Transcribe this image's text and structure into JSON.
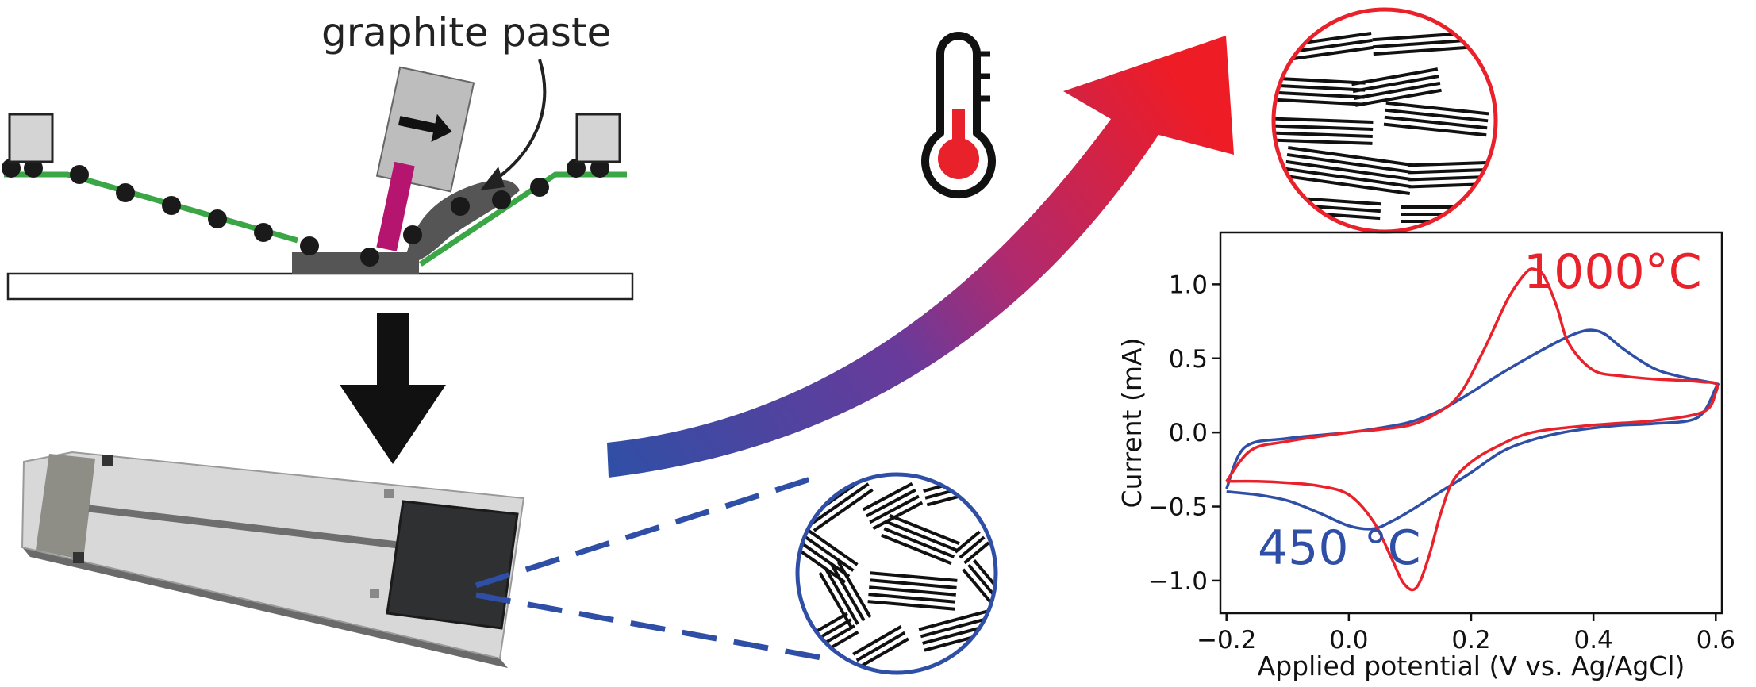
{
  "labels": {
    "paste": "graphite paste",
    "temp_high": "1000°C",
    "temp_low": "450 °C"
  },
  "colors": {
    "high": "#e8212b",
    "low": "#2f4fa6",
    "screen": "#3aa645",
    "ink": "#e0107d"
  },
  "icons": [
    "thermometer-icon",
    "screen-printer",
    "printed-electrode",
    "graphite-microstructure"
  ],
  "chart_data": {
    "type": "line",
    "xlabel": "Applied potential (V vs. Ag/AgCl)",
    "ylabel": "Current (mA)",
    "xlim": [
      -0.21,
      0.61
    ],
    "ylim": [
      -1.22,
      1.35
    ],
    "xticks": [
      -0.2,
      0.0,
      0.2,
      0.4,
      0.6
    ],
    "xtick_labels": [
      "−0.2",
      "0.0",
      "0.2",
      "0.4",
      "0.6"
    ],
    "yticks": [
      -1.0,
      -0.5,
      0.0,
      0.5,
      1.0
    ],
    "ytick_labels": [
      "−1.0",
      "−0.5",
      "0.0",
      "0.5",
      "1.0"
    ],
    "grid": false,
    "series": [
      {
        "name": "1000°C",
        "color": "#e8212b",
        "x": [
          -0.2,
          -0.16,
          -0.1,
          0.0,
          0.05,
          0.1,
          0.14,
          0.18,
          0.22,
          0.26,
          0.29,
          0.305,
          0.32,
          0.34,
          0.36,
          0.4,
          0.45,
          0.5,
          0.55,
          0.58,
          0.6,
          0.6,
          0.58,
          0.5,
          0.4,
          0.3,
          0.24,
          0.2,
          0.17,
          0.15,
          0.13,
          0.11,
          0.09,
          0.07,
          0.04,
          0.0,
          -0.05,
          -0.1,
          -0.15,
          -0.2
        ],
        "y": [
          -0.33,
          -0.12,
          -0.06,
          0.0,
          0.02,
          0.05,
          0.12,
          0.25,
          0.55,
          0.9,
          1.08,
          1.1,
          1.05,
          0.85,
          0.6,
          0.42,
          0.38,
          0.36,
          0.35,
          0.34,
          0.33,
          0.27,
          0.14,
          0.08,
          0.05,
          0.0,
          -0.1,
          -0.2,
          -0.33,
          -0.55,
          -0.85,
          -1.05,
          -1.02,
          -0.85,
          -0.6,
          -0.42,
          -0.36,
          -0.34,
          -0.33,
          -0.33
        ]
      },
      {
        "name": "450 °C",
        "color": "#2f4fa6",
        "x": [
          -0.2,
          -0.17,
          -0.1,
          0.0,
          0.05,
          0.1,
          0.15,
          0.2,
          0.25,
          0.3,
          0.35,
          0.38,
          0.4,
          0.42,
          0.45,
          0.5,
          0.55,
          0.6,
          0.6,
          0.57,
          0.5,
          0.45,
          0.4,
          0.35,
          0.3,
          0.25,
          0.2,
          0.15,
          0.1,
          0.07,
          0.04,
          0.0,
          -0.05,
          -0.1,
          -0.15,
          -0.2
        ],
        "y": [
          -0.38,
          -0.1,
          -0.04,
          0.0,
          0.03,
          0.07,
          0.15,
          0.27,
          0.4,
          0.52,
          0.63,
          0.68,
          0.69,
          0.66,
          0.56,
          0.43,
          0.37,
          0.33,
          0.3,
          0.1,
          0.06,
          0.05,
          0.03,
          0.0,
          -0.05,
          -0.13,
          -0.27,
          -0.4,
          -0.53,
          -0.6,
          -0.65,
          -0.63,
          -0.54,
          -0.46,
          -0.42,
          -0.4
        ]
      }
    ]
  }
}
